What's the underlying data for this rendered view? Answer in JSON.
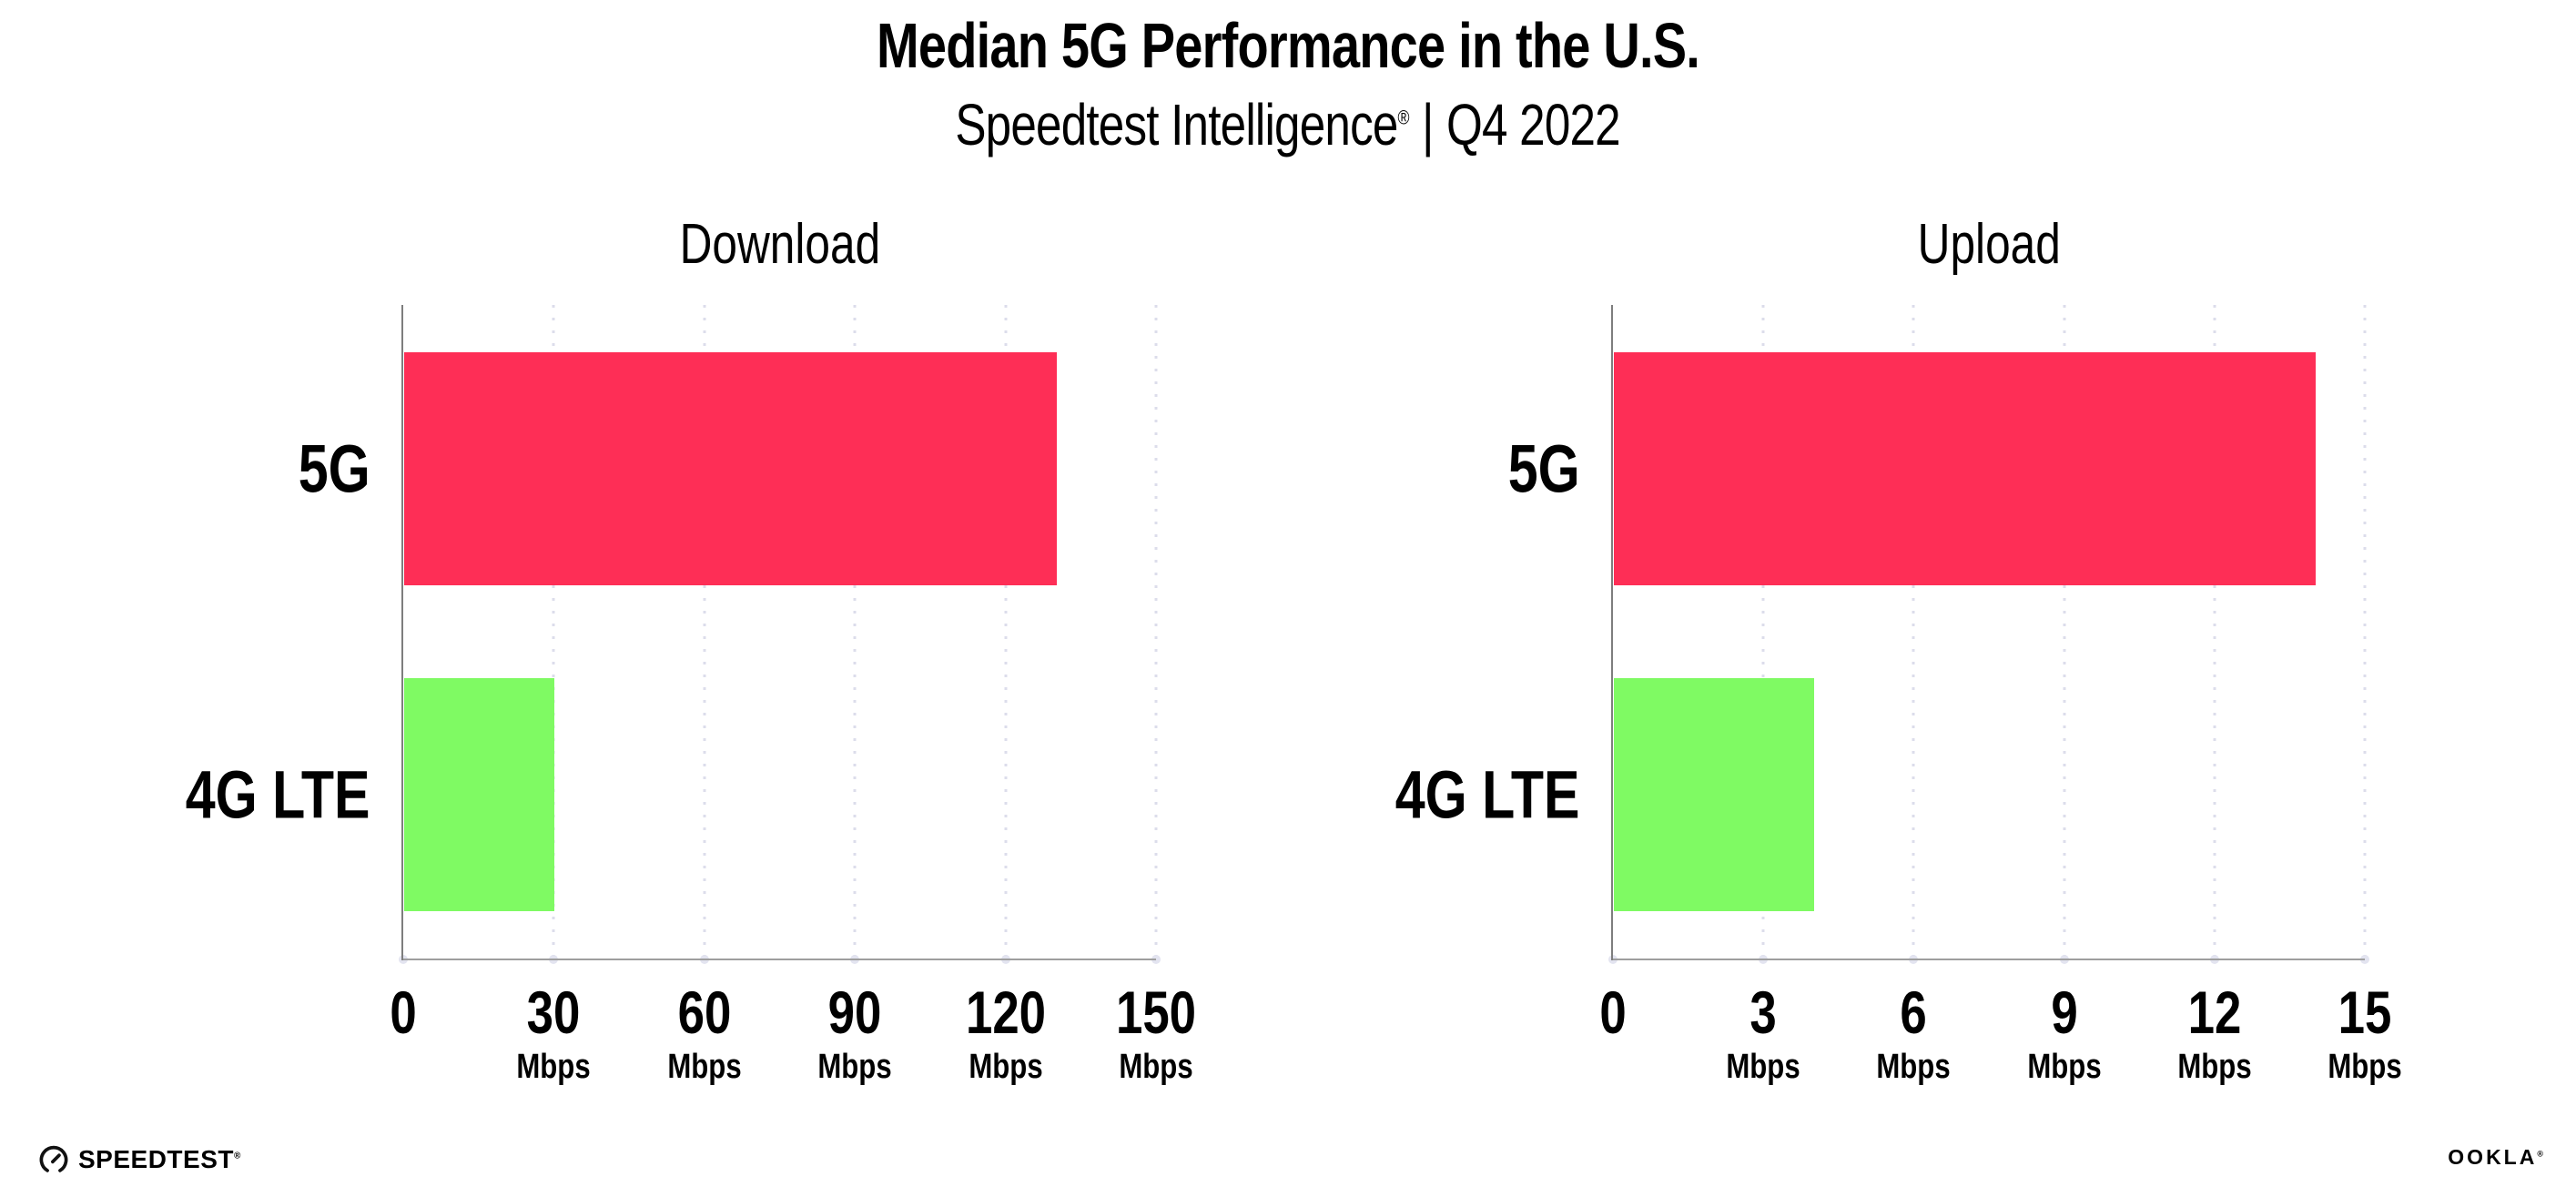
{
  "header": {
    "title": "Median 5G Performance in the U.S.",
    "subtitle_brand": "Speedtest Intelligence",
    "subtitle_trademark": "®",
    "subtitle_separator": "|",
    "subtitle_period": "Q4 2022"
  },
  "chart_data": [
    {
      "type": "bar",
      "orientation": "horizontal",
      "title": "Download",
      "categories": [
        "5G",
        "4G LTE"
      ],
      "values": [
        130,
        30
      ],
      "unit": "Mbps",
      "xlim": [
        0,
        150
      ],
      "xticks": [
        0,
        30,
        60,
        90,
        120,
        150
      ],
      "ticks": [
        {
          "label": "0",
          "unit": ""
        },
        {
          "label": "30",
          "unit": "Mbps"
        },
        {
          "label": "60",
          "unit": "Mbps"
        },
        {
          "label": "90",
          "unit": "Mbps"
        },
        {
          "label": "120",
          "unit": "Mbps"
        },
        {
          "label": "150",
          "unit": "Mbps"
        }
      ],
      "bar_colors": [
        "#FE2E56",
        "#7FFA63"
      ],
      "grid": "dotted-vertical",
      "legend": "none"
    },
    {
      "type": "bar",
      "orientation": "horizontal",
      "title": "Upload",
      "categories": [
        "5G",
        "4G LTE"
      ],
      "values": [
        14,
        4
      ],
      "unit": "Mbps",
      "xlim": [
        0,
        15
      ],
      "xticks": [
        0,
        3,
        6,
        9,
        12,
        15
      ],
      "ticks": [
        {
          "label": "0",
          "unit": ""
        },
        {
          "label": "3",
          "unit": "Mbps"
        },
        {
          "label": "6",
          "unit": "Mbps"
        },
        {
          "label": "9",
          "unit": "Mbps"
        },
        {
          "label": "12",
          "unit": "Mbps"
        },
        {
          "label": "15",
          "unit": "Mbps"
        }
      ],
      "bar_colors": [
        "#FE2E56",
        "#7FFA63"
      ],
      "grid": "dotted-vertical",
      "legend": "none"
    }
  ],
  "footer": {
    "speedtest_label": "SPEEDTEST",
    "speedtest_trademark": "®",
    "ookla_label": "OOKLA",
    "ookla_trademark": "®"
  },
  "colors": {
    "bar_5g": "#FE2E56",
    "bar_4g_lte": "#7FFA63",
    "axis": "#8E8E8E",
    "gridline": "#DCDDEB",
    "text": "#000000",
    "background": "#FFFFFF"
  }
}
